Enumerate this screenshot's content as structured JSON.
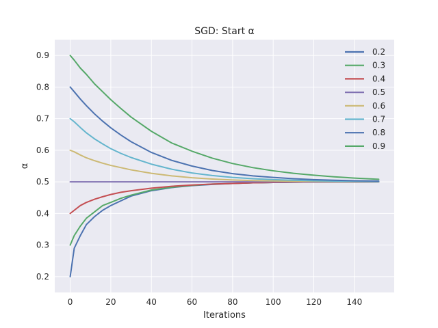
{
  "chart_data": {
    "type": "line",
    "title": "SGD: Start α",
    "xlabel": "Iterations",
    "ylabel": "α",
    "xlim": [
      -7.6,
      159.6
    ],
    "ylim": [
      0.15,
      0.95
    ],
    "xticks": [
      0,
      20,
      40,
      60,
      80,
      100,
      120,
      140
    ],
    "yticks": [
      0.2,
      0.3,
      0.4,
      0.5,
      0.6,
      0.7,
      0.8,
      0.9
    ],
    "grid": true,
    "legend_position": "top-right",
    "x": [
      0,
      2,
      5,
      8,
      12,
      16,
      20,
      25,
      30,
      40,
      50,
      60,
      70,
      80,
      90,
      100,
      110,
      120,
      130,
      140,
      152
    ],
    "series": [
      {
        "name": "0.2",
        "color": "#4c72b0",
        "values": [
          0.2,
          0.29,
          0.33,
          0.365,
          0.39,
          0.41,
          0.425,
          0.44,
          0.455,
          0.472,
          0.482,
          0.488,
          0.492,
          0.495,
          0.497,
          0.498,
          0.499,
          0.4995,
          0.4997,
          0.4998,
          0.4999
        ]
      },
      {
        "name": "0.3",
        "color": "#55a868",
        "values": [
          0.3,
          0.33,
          0.36,
          0.385,
          0.405,
          0.425,
          0.435,
          0.448,
          0.458,
          0.474,
          0.483,
          0.489,
          0.493,
          0.495,
          0.497,
          0.498,
          0.499,
          0.4995,
          0.4997,
          0.4998,
          0.4999
        ]
      },
      {
        "name": "0.4",
        "color": "#c44e52",
        "values": [
          0.4,
          0.41,
          0.425,
          0.435,
          0.445,
          0.453,
          0.46,
          0.467,
          0.472,
          0.48,
          0.486,
          0.49,
          0.493,
          0.495,
          0.497,
          0.498,
          0.499,
          0.4995,
          0.4997,
          0.4998,
          0.4999
        ]
      },
      {
        "name": "0.5",
        "color": "#8172b2",
        "values": [
          0.5,
          0.5,
          0.5,
          0.5,
          0.5,
          0.5,
          0.5,
          0.5,
          0.5,
          0.5,
          0.5,
          0.5,
          0.5,
          0.5,
          0.5,
          0.5,
          0.5,
          0.5,
          0.5,
          0.5,
          0.5
        ]
      },
      {
        "name": "0.6",
        "color": "#ccb974",
        "values": [
          0.6,
          0.595,
          0.585,
          0.576,
          0.567,
          0.559,
          0.552,
          0.545,
          0.538,
          0.527,
          0.519,
          0.513,
          0.509,
          0.506,
          0.504,
          0.503,
          0.502,
          0.5015,
          0.501,
          0.5007,
          0.5005
        ]
      },
      {
        "name": "0.7",
        "color": "#64b5cd",
        "values": [
          0.7,
          0.69,
          0.672,
          0.655,
          0.636,
          0.62,
          0.605,
          0.59,
          0.577,
          0.556,
          0.54,
          0.528,
          0.52,
          0.514,
          0.51,
          0.507,
          0.505,
          0.5035,
          0.5025,
          0.5018,
          0.5012
        ]
      },
      {
        "name": "0.8",
        "color": "#4c72b0",
        "values": [
          0.8,
          0.785,
          0.762,
          0.741,
          0.715,
          0.692,
          0.671,
          0.648,
          0.627,
          0.593,
          0.568,
          0.55,
          0.536,
          0.526,
          0.519,
          0.514,
          0.51,
          0.507,
          0.505,
          0.5035,
          0.5025
        ]
      },
      {
        "name": "0.9",
        "color": "#55a868",
        "values": [
          0.9,
          0.885,
          0.86,
          0.84,
          0.81,
          0.785,
          0.76,
          0.732,
          0.705,
          0.66,
          0.623,
          0.597,
          0.575,
          0.558,
          0.545,
          0.535,
          0.527,
          0.521,
          0.516,
          0.512,
          0.508
        ]
      }
    ]
  }
}
